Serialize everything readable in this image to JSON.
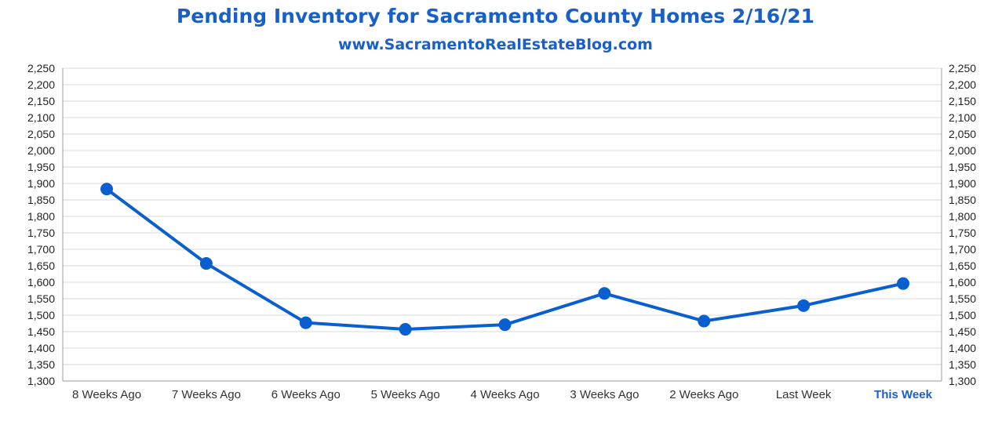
{
  "chart_data": {
    "type": "line",
    "title": "Pending Inventory for Sacramento County Homes 2/16/21",
    "subtitle": "www.SacramentoRealEstateBlog.com",
    "categories": [
      "8 Weeks Ago",
      "7 Weeks Ago",
      "6 Weeks Ago",
      "5 Weeks Ago",
      "4 Weeks Ago",
      "3 Weeks Ago",
      "2 Weeks Ago",
      "Last Week",
      "This Week"
    ],
    "highlight_category": "This Week",
    "values": [
      1883,
      1657,
      1477,
      1457,
      1471,
      1566,
      1482,
      1529,
      1596
    ],
    "ylim": [
      1300,
      2250
    ],
    "ytick_step": 50,
    "yticks_left": [
      "1,300",
      "1,350",
      "1,400",
      "1,450",
      "1,500",
      "1,550",
      "1,600",
      "1,650",
      "1,700",
      "1,750",
      "1,800",
      "1,850",
      "1,900",
      "1,950",
      "2,000",
      "2,050",
      "2,100",
      "2,150",
      "2,200",
      "2,250"
    ],
    "yticks_right": [
      "1,300",
      "1,350",
      "1,400",
      "1,450",
      "1,500",
      "1,550",
      "1,600",
      "1,650",
      "1,700",
      "1,750",
      "1,800",
      "1,850",
      "1,900",
      "1,950",
      "2,000",
      "2,050",
      "2,100",
      "2,150",
      "2,200",
      "2,250"
    ],
    "grid": true,
    "line_color": "#0a5fd0",
    "title_color": "#1a5fc7"
  }
}
